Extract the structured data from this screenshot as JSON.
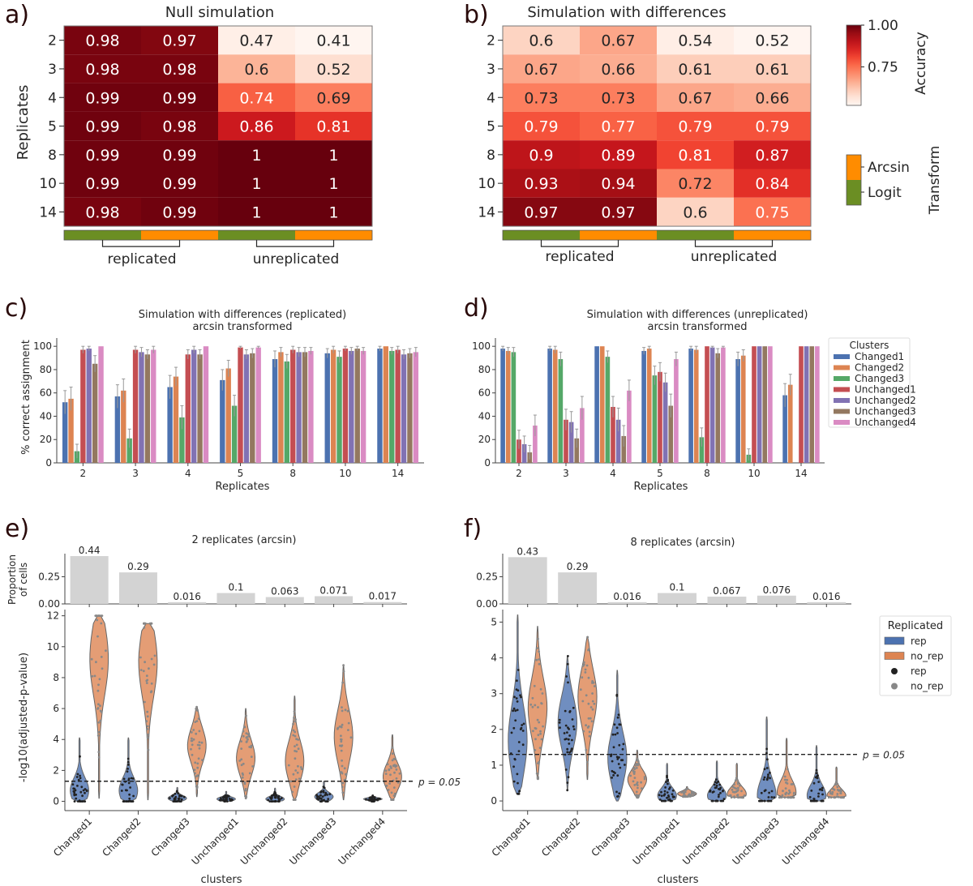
{
  "panels": {
    "a": {
      "letter": "a)"
    },
    "b": {
      "letter": "b)"
    },
    "c": {
      "letter": "c)"
    },
    "d": {
      "letter": "d)"
    },
    "e": {
      "letter": "e)"
    },
    "f": {
      "letter": "f)"
    }
  },
  "colors": {
    "logit": "#6b8e23",
    "arcsin": "#ff8c00",
    "clusters": [
      "#4c72b0",
      "#dd8452",
      "#55a868",
      "#c44e52",
      "#8172b3",
      "#937860",
      "#da8bc3"
    ],
    "violin_rep": "#4c72b0",
    "violin_no_rep": "#dd8452",
    "point_rep": "#222222",
    "point_no_rep": "#888888",
    "prop_bar": "#d3d3d3"
  },
  "chart_data": [
    {
      "id": "a",
      "type": "heatmap",
      "title": "Null simulation",
      "ylabel": "Replicates",
      "rows": [
        "2",
        "3",
        "4",
        "5",
        "8",
        "10",
        "14"
      ],
      "columns": [
        {
          "group": "replicated",
          "transform": "Logit"
        },
        {
          "group": "replicated",
          "transform": "Arcsin"
        },
        {
          "group": "unreplicated",
          "transform": "Logit"
        },
        {
          "group": "unreplicated",
          "transform": "Arcsin"
        }
      ],
      "group_labels": [
        "replicated",
        "unreplicated"
      ],
      "values": [
        [
          0.98,
          0.97,
          0.47,
          0.41
        ],
        [
          0.98,
          0.98,
          0.6,
          0.52
        ],
        [
          0.99,
          0.99,
          0.74,
          0.69
        ],
        [
          0.99,
          0.98,
          0.86,
          0.81
        ],
        [
          0.99,
          0.99,
          1,
          1
        ],
        [
          0.99,
          0.99,
          1,
          1
        ],
        [
          0.98,
          0.99,
          1,
          1
        ]
      ],
      "labels": [
        [
          "0.98",
          "0.97",
          "0.47",
          "0.41"
        ],
        [
          "0.98",
          "0.98",
          "0.6",
          "0.52"
        ],
        [
          "0.99",
          "0.99",
          "0.74",
          "0.69"
        ],
        [
          "0.99",
          "0.98",
          "0.86",
          "0.81"
        ],
        [
          "0.99",
          "0.99",
          "1",
          "1"
        ],
        [
          "0.99",
          "0.99",
          "1",
          "1"
        ],
        [
          "0.98",
          "0.99",
          "1",
          "1"
        ]
      ],
      "vmin": 0.45,
      "vmax": 1.0
    },
    {
      "id": "b",
      "type": "heatmap",
      "title": "Simulation with differences",
      "rows": [
        "2",
        "3",
        "4",
        "5",
        "8",
        "10",
        "14"
      ],
      "columns": [
        {
          "group": "replicated",
          "transform": "Logit"
        },
        {
          "group": "replicated",
          "transform": "Arcsin"
        },
        {
          "group": "unreplicated",
          "transform": "Logit"
        },
        {
          "group": "unreplicated",
          "transform": "Arcsin"
        }
      ],
      "group_labels": [
        "replicated",
        "unreplicated"
      ],
      "values": [
        [
          0.6,
          0.67,
          0.54,
          0.52
        ],
        [
          0.67,
          0.66,
          0.61,
          0.61
        ],
        [
          0.73,
          0.73,
          0.67,
          0.66
        ],
        [
          0.79,
          0.77,
          0.79,
          0.79
        ],
        [
          0.9,
          0.89,
          0.81,
          0.87
        ],
        [
          0.93,
          0.94,
          0.72,
          0.84
        ],
        [
          0.97,
          0.97,
          0.6,
          0.75
        ]
      ],
      "labels": [
        [
          "0.6",
          "0.67",
          "0.54",
          "0.52"
        ],
        [
          "0.67",
          "0.66",
          "0.61",
          "0.61"
        ],
        [
          "0.73",
          "0.73",
          "0.67",
          "0.66"
        ],
        [
          "0.79",
          "0.77",
          "0.79",
          "0.79"
        ],
        [
          "0.9",
          "0.89",
          "0.81",
          "0.87"
        ],
        [
          "0.93",
          "0.94",
          "0.72",
          "0.84"
        ],
        [
          "0.97",
          "0.97",
          "0.6",
          "0.75"
        ]
      ],
      "vmin": 0.52,
      "vmax": 1.0,
      "colorbar": {
        "label": "Accuracy",
        "ticks": [
          "1.00",
          "0.75"
        ],
        "tick_values": [
          1.0,
          0.75
        ]
      },
      "transform_legend": {
        "label": "Transform",
        "items": [
          "Arcsin",
          "Logit"
        ]
      }
    },
    {
      "id": "c",
      "type": "bar",
      "title": "Simulation with differences (replicated)",
      "subtitle": "arcsin transformed",
      "xlabel": "Replicates",
      "ylabel": "% correct assignment",
      "categories": [
        "2",
        "3",
        "4",
        "5",
        "8",
        "10",
        "14"
      ],
      "ylim": [
        0,
        105
      ],
      "yticks": [
        0,
        20,
        40,
        60,
        80,
        100
      ],
      "series": [
        {
          "name": "Changed1",
          "values": [
            52,
            57,
            65,
            71,
            89,
            94,
            98
          ],
          "err": [
            10,
            10,
            10,
            9,
            7,
            4,
            2
          ]
        },
        {
          "name": "Changed2",
          "values": [
            55,
            62,
            74,
            81,
            95,
            97,
            100
          ],
          "err": [
            10,
            10,
            8,
            7,
            4,
            3,
            0
          ]
        },
        {
          "name": "Changed3",
          "values": [
            10,
            21,
            39,
            49,
            87,
            91,
            96
          ],
          "err": [
            6,
            8,
            10,
            9,
            6,
            5,
            3
          ]
        },
        {
          "name": "Unchanged1",
          "values": [
            97,
            97,
            93,
            99,
            97,
            98,
            97
          ],
          "err": [
            3,
            3,
            4,
            1,
            3,
            2,
            3
          ]
        },
        {
          "name": "Unchanged2",
          "values": [
            98,
            95,
            97,
            93,
            95,
            96,
            93
          ],
          "err": [
            2,
            4,
            3,
            4,
            4,
            3,
            4
          ]
        },
        {
          "name": "Unchanged3",
          "values": [
            85,
            93,
            93,
            94,
            95,
            98,
            94
          ],
          "err": [
            7,
            4,
            4,
            4,
            4,
            2,
            4
          ]
        },
        {
          "name": "Unchanged4",
          "values": [
            100,
            97,
            100,
            99,
            96,
            96,
            95
          ],
          "err": [
            0,
            3,
            0,
            1,
            3,
            3,
            4
          ]
        }
      ]
    },
    {
      "id": "d",
      "type": "bar",
      "title": "Simulation with differences (unreplicated)",
      "subtitle": "arcsin transformed",
      "xlabel": "Replicates",
      "ylabel": "",
      "categories": [
        "2",
        "3",
        "4",
        "5",
        "8",
        "10",
        "14"
      ],
      "ylim": [
        0,
        105
      ],
      "yticks": [
        0,
        20,
        40,
        60,
        80,
        100
      ],
      "legend": {
        "title": "Clusters",
        "placement": "right"
      },
      "series": [
        {
          "name": "Changed1",
          "values": [
            98,
            98,
            100,
            96,
            98,
            89,
            58
          ],
          "err": [
            2,
            2,
            0,
            3,
            2,
            6,
            10
          ]
        },
        {
          "name": "Changed2",
          "values": [
            96,
            97,
            100,
            98,
            97,
            92,
            67
          ],
          "err": [
            3,
            3,
            0,
            2,
            3,
            5,
            9
          ]
        },
        {
          "name": "Changed3",
          "values": [
            95,
            89,
            91,
            75,
            22,
            7,
            0
          ],
          "err": [
            4,
            6,
            5,
            8,
            8,
            5,
            0
          ]
        },
        {
          "name": "Unchanged1",
          "values": [
            20,
            37,
            48,
            78,
            100,
            100,
            100
          ],
          "err": [
            8,
            9,
            9,
            8,
            0,
            0,
            0
          ]
        },
        {
          "name": "Unchanged2",
          "values": [
            16,
            35,
            37,
            69,
            99,
            100,
            100
          ],
          "err": [
            7,
            9,
            10,
            8,
            1,
            0,
            0
          ]
        },
        {
          "name": "Unchanged3",
          "values": [
            9,
            21,
            23,
            49,
            94,
            100,
            100
          ],
          "err": [
            6,
            8,
            9,
            10,
            4,
            0,
            0
          ]
        },
        {
          "name": "Unchanged4",
          "values": [
            32,
            47,
            62,
            89,
            99,
            100,
            100
          ],
          "err": [
            9,
            10,
            9,
            6,
            1,
            0,
            0
          ]
        }
      ]
    },
    {
      "id": "e",
      "type": "violin",
      "title": "2 replicates (arcsin)",
      "xlabel": "clusters",
      "ylabel": "-log10(adjusted-p-value)",
      "prop_ylabel": "Proportion of cells",
      "prop_ylabel_lines": [
        "Proportion",
        "of cells"
      ],
      "categories": [
        "Changed1",
        "Changed2",
        "Changed3",
        "Unchanged1",
        "Unchanged2",
        "Unchanged3",
        "Unchanged4"
      ],
      "proportions": [
        0.44,
        0.29,
        0.016,
        0.1,
        0.063,
        0.071,
        0.017
      ],
      "proportion_labels": [
        "0.44",
        "0.29",
        "0.016",
        "0.1",
        "0.063",
        "0.071",
        "0.017"
      ],
      "prop_yticks": [
        "0.00",
        "0.25"
      ],
      "prop_ylim": [
        0,
        0.44
      ],
      "ylim": [
        -0.6,
        12.4
      ],
      "yticks": [
        0,
        2,
        4,
        6,
        8,
        10,
        12
      ],
      "threshold": {
        "value": 1.3,
        "label": "p = 0.05"
      },
      "series": [
        {
          "name": "rep",
          "ranges": [
            [
              0,
              4.1
            ],
            [
              0,
              4.1
            ],
            [
              0,
              0.9
            ],
            [
              0,
              0.65
            ],
            [
              0,
              0.85
            ],
            [
              0,
              1.3
            ],
            [
              0,
              0.4
            ]
          ],
          "modes": [
            0.7,
            0.7,
            0.2,
            0.15,
            0.15,
            0.3,
            0.15
          ]
        },
        {
          "name": "no_rep",
          "ranges": [
            [
              0.2,
              12
            ],
            [
              0.1,
              11.5
            ],
            [
              0.3,
              6.1
            ],
            [
              0.2,
              6.0
            ],
            [
              0.1,
              6.8
            ],
            [
              0.1,
              8.8
            ],
            [
              0.1,
              4.3
            ]
          ],
          "modes": [
            9.2,
            9.0,
            3.6,
            2.8,
            2.6,
            4.2,
            1.6
          ]
        }
      ]
    },
    {
      "id": "f",
      "type": "violin",
      "title": "8 replicates (arcsin)",
      "xlabel": "clusters",
      "ylabel": "",
      "categories": [
        "Changed1",
        "Changed2",
        "Changed3",
        "Unchanged1",
        "Unchanged2",
        "Unchanged3",
        "Unchanged4"
      ],
      "proportions": [
        0.43,
        0.29,
        0.016,
        0.1,
        0.067,
        0.076,
        0.016
      ],
      "proportion_labels": [
        "0.43",
        "0.29",
        "0.016",
        "0.1",
        "0.067",
        "0.076",
        "0.016"
      ],
      "prop_yticks": [
        "0.00",
        "0.25"
      ],
      "prop_ylim": [
        0,
        0.44
      ],
      "ylim": [
        -0.27,
        5.35
      ],
      "yticks": [
        0,
        1,
        2,
        3,
        4,
        5
      ],
      "threshold": {
        "value": 1.3,
        "label": "p = 0.05"
      },
      "legend": {
        "title": "Replicated",
        "items": [
          {
            "kind": "patch",
            "label": "rep"
          },
          {
            "kind": "patch",
            "label": "no_rep"
          },
          {
            "kind": "dot",
            "label": "rep"
          },
          {
            "kind": "dot",
            "label": "no_rep"
          }
        ]
      },
      "series": [
        {
          "name": "rep",
          "ranges": [
            [
              0.2,
              5.2
            ],
            [
              0.3,
              4.05
            ],
            [
              0,
              3.65
            ],
            [
              0,
              1.05
            ],
            [
              0,
              1.12
            ],
            [
              0,
              2.35
            ],
            [
              0,
              1.55
            ]
          ],
          "modes": [
            1.7,
            2.2,
            1.2,
            0.15,
            0.15,
            0.15,
            0.15
          ]
        },
        {
          "name": "no_rep",
          "ranges": [
            [
              0.62,
              4.88
            ],
            [
              0.6,
              4.58
            ],
            [
              0.1,
              1.42
            ],
            [
              0.12,
              0.4
            ],
            [
              0.1,
              1.05
            ],
            [
              0.1,
              1.75
            ],
            [
              0.1,
              0.95
            ]
          ],
          "modes": [
            2.6,
            2.9,
            0.6,
            0.2,
            0.2,
            0.25,
            0.15
          ]
        }
      ]
    }
  ]
}
